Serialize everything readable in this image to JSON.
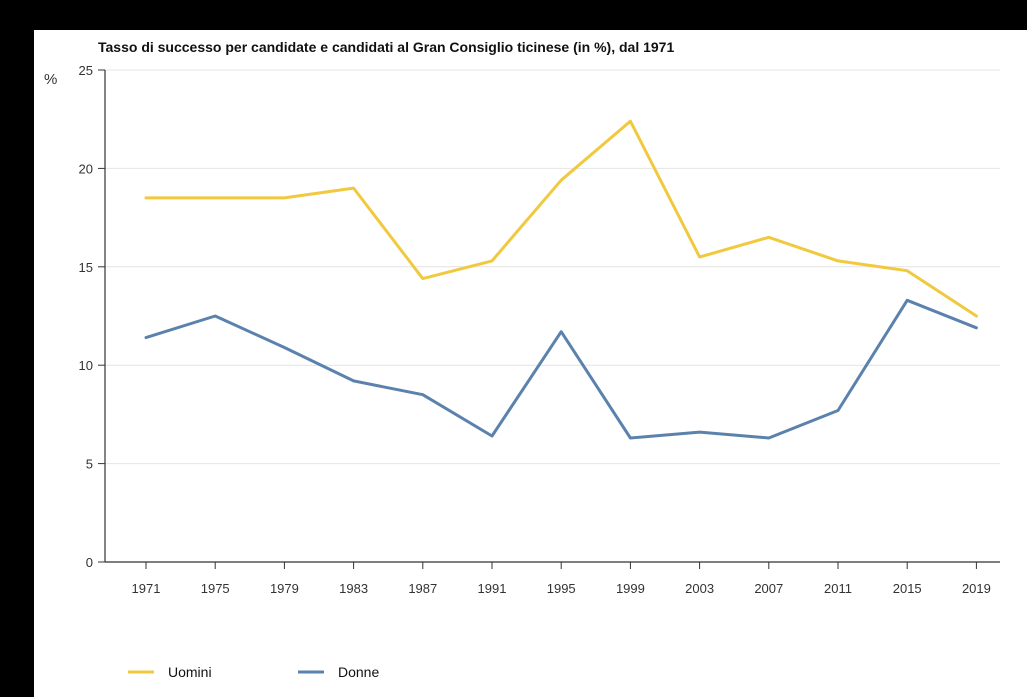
{
  "chart_data": {
    "type": "line",
    "title": "Tasso di successo per candidate e candidati al Gran Consiglio ticinese (in %), dal 1971",
    "ylabel": "%",
    "xlabel": "",
    "x": [
      "1971",
      "1975",
      "1979",
      "1983",
      "1987",
      "1991",
      "1995",
      "1999",
      "2003",
      "2007",
      "2011",
      "2015",
      "2019"
    ],
    "ylim": [
      0,
      25
    ],
    "yticks": [
      0,
      5,
      10,
      15,
      20,
      25
    ],
    "grid": true,
    "legend": "bottom-left",
    "series": [
      {
        "name": "Uomini",
        "color": "#f0c93f",
        "values": [
          18.5,
          18.5,
          18.5,
          19.0,
          14.4,
          15.3,
          19.4,
          22.4,
          15.5,
          16.5,
          15.3,
          14.8,
          12.5
        ]
      },
      {
        "name": "Donne",
        "color": "#5b82ad",
        "values": [
          11.4,
          12.5,
          10.9,
          9.2,
          8.5,
          6.4,
          11.7,
          6.3,
          6.6,
          6.3,
          7.7,
          13.3,
          11.9
        ]
      }
    ]
  }
}
